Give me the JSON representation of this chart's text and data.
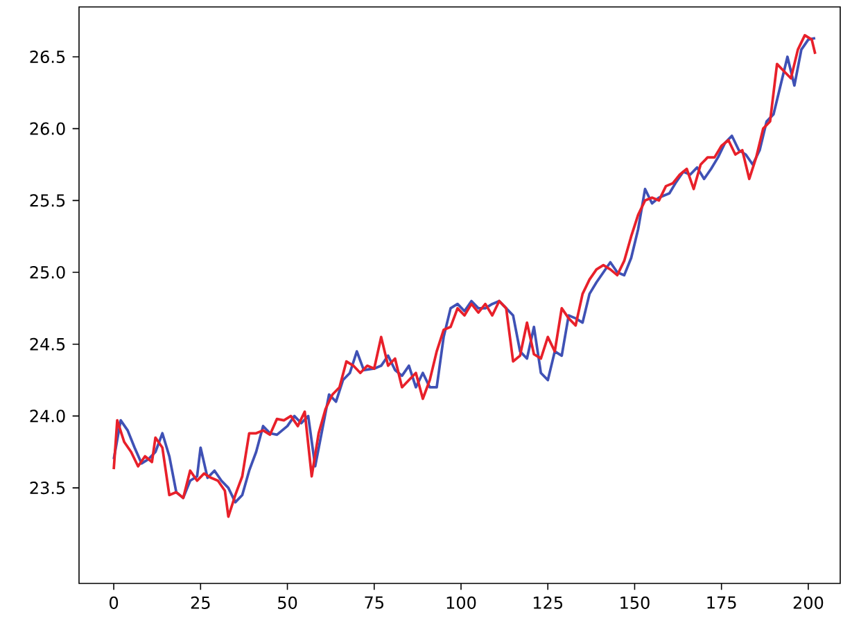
{
  "chart_data": {
    "type": "line",
    "xlim": [
      -10,
      209.2
    ],
    "ylim": [
      22.835,
      26.847
    ],
    "xticks": [
      0,
      25,
      50,
      75,
      100,
      125,
      150,
      175,
      200
    ],
    "yticks": [
      23.5,
      {
        "value": 24,
        "label": "24.0"
      },
      24.5,
      {
        "value": 25,
        "label": "25.0"
      },
      25.5,
      {
        "value": 26,
        "label": "26.0"
      },
      26.5
    ],
    "grid": false,
    "marker": "none",
    "line_style": "solid",
    "series": [
      {
        "color": "#3f51b5",
        "x": [
          0,
          2,
          4,
          6,
          8,
          10,
          12,
          14,
          16,
          18,
          20,
          22,
          24,
          25,
          27,
          29,
          31,
          33,
          35,
          37,
          39,
          41,
          43,
          45,
          47,
          50,
          52,
          54,
          56,
          58,
          60,
          62,
          64,
          66,
          68,
          70,
          72,
          75,
          77,
          79,
          81,
          83,
          85,
          87,
          89,
          91,
          93,
          95,
          97,
          99,
          101,
          103,
          105,
          107,
          109,
          111,
          113,
          115,
          117,
          119,
          121,
          123,
          125,
          127,
          129,
          131,
          133,
          135,
          137,
          139,
          141,
          143,
          145,
          147,
          149,
          151,
          153,
          155,
          157,
          160,
          162,
          164,
          166,
          168,
          170,
          172,
          174,
          176,
          178,
          180,
          182,
          184,
          186,
          188,
          190,
          192,
          194,
          196,
          198,
          200,
          202
        ],
        "values": [
          23.7,
          23.97,
          23.9,
          23.78,
          23.67,
          23.7,
          23.75,
          23.88,
          23.72,
          23.47,
          23.43,
          23.55,
          23.58,
          23.78,
          23.57,
          23.62,
          23.55,
          23.5,
          23.4,
          23.45,
          23.62,
          23.75,
          23.93,
          23.88,
          23.87,
          23.93,
          24.0,
          23.95,
          24.0,
          23.65,
          23.9,
          24.15,
          24.1,
          24.25,
          24.3,
          24.45,
          24.32,
          24.33,
          24.35,
          24.42,
          24.32,
          24.28,
          24.35,
          24.2,
          24.3,
          24.2,
          24.2,
          24.55,
          24.75,
          24.78,
          24.73,
          24.8,
          24.75,
          24.75,
          24.78,
          24.8,
          24.75,
          24.7,
          24.45,
          24.4,
          24.62,
          24.3,
          24.25,
          24.45,
          24.42,
          24.7,
          24.68,
          24.65,
          24.85,
          24.93,
          25.0,
          25.07,
          25.0,
          24.98,
          25.1,
          25.3,
          25.58,
          25.48,
          25.52,
          25.55,
          25.63,
          25.7,
          25.68,
          25.73,
          25.65,
          25.72,
          25.8,
          25.9,
          25.95,
          25.85,
          25.82,
          25.75,
          25.85,
          26.05,
          26.1,
          26.3,
          26.5,
          26.3,
          26.55,
          26.62,
          26.63
        ]
      },
      {
        "color": "#e8202a",
        "x": [
          0,
          1,
          3,
          5,
          7,
          9,
          11,
          12,
          14,
          16,
          18,
          20,
          22,
          24,
          26,
          28,
          30,
          32,
          33,
          35,
          37,
          39,
          41,
          43,
          45,
          47,
          49,
          51,
          53,
          55,
          57,
          59,
          61,
          63,
          65,
          67,
          69,
          71,
          73,
          75,
          77,
          79,
          81,
          83,
          85,
          87,
          89,
          91,
          93,
          95,
          97,
          99,
          101,
          103,
          105,
          107,
          109,
          111,
          113,
          115,
          117,
          119,
          121,
          123,
          125,
          127,
          129,
          131,
          133,
          135,
          137,
          139,
          141,
          143,
          145,
          147,
          149,
          151,
          153,
          155,
          157,
          159,
          161,
          163,
          165,
          167,
          169,
          171,
          173,
          175,
          177,
          179,
          181,
          183,
          185,
          187,
          189,
          191,
          193,
          195,
          197,
          199,
          201,
          202
        ],
        "values": [
          23.63,
          23.97,
          23.82,
          23.75,
          23.65,
          23.72,
          23.68,
          23.85,
          23.78,
          23.45,
          23.47,
          23.43,
          23.62,
          23.55,
          23.6,
          23.57,
          23.55,
          23.48,
          23.3,
          23.45,
          23.58,
          23.88,
          23.88,
          23.9,
          23.87,
          23.98,
          23.97,
          24.0,
          23.93,
          24.03,
          23.58,
          23.88,
          24.05,
          24.15,
          24.2,
          24.38,
          24.35,
          24.3,
          24.35,
          24.33,
          24.55,
          24.35,
          24.4,
          24.2,
          24.25,
          24.3,
          24.12,
          24.25,
          24.45,
          24.6,
          24.62,
          24.75,
          24.7,
          24.78,
          24.72,
          24.78,
          24.7,
          24.8,
          24.75,
          24.38,
          24.42,
          24.65,
          24.43,
          24.4,
          24.55,
          24.45,
          24.75,
          24.68,
          24.63,
          24.85,
          24.95,
          25.02,
          25.05,
          25.02,
          24.98,
          25.08,
          25.25,
          25.4,
          25.5,
          25.52,
          25.5,
          25.6,
          25.62,
          25.68,
          25.72,
          25.58,
          25.75,
          25.8,
          25.8,
          25.88,
          25.92,
          25.82,
          25.85,
          25.65,
          25.8,
          26.0,
          26.05,
          26.45,
          26.4,
          26.35,
          26.55,
          26.65,
          26.62,
          26.52
        ]
      }
    ]
  }
}
